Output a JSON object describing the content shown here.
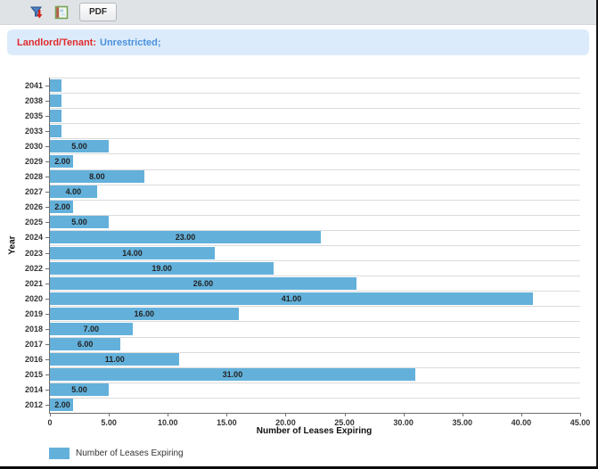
{
  "toolbar": {
    "pdf_label": "PDF",
    "icons": [
      "filter-export-icon",
      "report-icon"
    ]
  },
  "banner": {
    "label": "Landlord/Tenant:",
    "value": "Unrestricted;",
    "label_color": "#e02b2b",
    "value_color": "#4a90dd",
    "bg_color": "#dcebfb"
  },
  "chart_data": {
    "type": "bar",
    "orientation": "horizontal",
    "title": "",
    "xlabel": "Number of Leases Expiring",
    "ylabel": "Year",
    "xlim": [
      0,
      45
    ],
    "grid": "horizontal-row-separators",
    "legend_position": "bottom-left",
    "legend": {
      "label": "Number of Leases Expiring"
    },
    "bar_color": "#63b1db",
    "categories": [
      "2041",
      "2038",
      "2035",
      "2033",
      "2030",
      "2029",
      "2028",
      "2027",
      "2026",
      "2025",
      "2024",
      "2023",
      "2022",
      "2021",
      "2020",
      "2019",
      "2018",
      "2017",
      "2016",
      "2015",
      "2014",
      "2012"
    ],
    "values": [
      1,
      1,
      1,
      1,
      5,
      2,
      8,
      4,
      2,
      5,
      23,
      14,
      19,
      26,
      41,
      16,
      7,
      6,
      11,
      31,
      5,
      2
    ],
    "bar_labels": [
      "",
      "",
      "",
      "",
      "5.00",
      "2.00",
      "8.00",
      "4.00",
      "2.00",
      "5.00",
      "23.00",
      "14.00",
      "19.00",
      "26.00",
      "41.00",
      "16.00",
      "7.00",
      "6.00",
      "11.00",
      "31.00",
      "5.00",
      "2.00"
    ],
    "xtick_values": [
      0,
      5,
      10,
      15,
      20,
      25,
      30,
      35,
      40,
      45
    ],
    "xtick_labels": [
      "0",
      "5.00",
      "10.00",
      "15.00",
      "20.00",
      "25.00",
      "30.00",
      "35.00",
      "40.00",
      "45.00"
    ]
  }
}
